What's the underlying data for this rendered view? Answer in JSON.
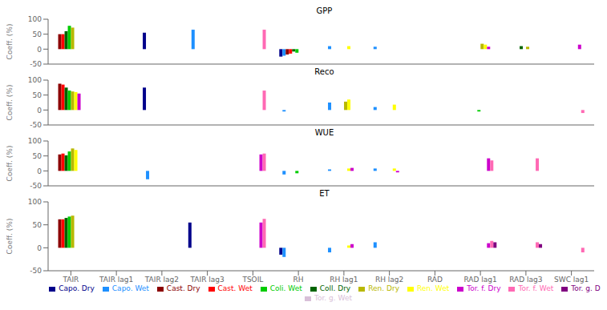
{
  "chart_data": [
    {
      "type": "bar",
      "title": "GPP",
      "ylabel": "Coeff. (%)",
      "categories": [
        "TAIR",
        "TAIR lag1",
        "TAIR lag2",
        "TAIR lag3",
        "TSOIL",
        "RH",
        "RH lag1",
        "RH lag2",
        "RAD",
        "RAD lag1",
        "RAD lag3",
        "SWC lag1"
      ],
      "ylim": [
        -50,
        100
      ],
      "yticks": [
        -50,
        0,
        50,
        100
      ],
      "grid": false,
      "tick_labels": "y",
      "series": [
        {
          "name": "Capo. Dry",
          "color": "#00008B",
          "values": [
            0,
            0,
            55,
            0,
            0,
            -25,
            0,
            0,
            0,
            0,
            0,
            0
          ]
        },
        {
          "name": "Capo. Wet",
          "color": "#1E90FF",
          "values": [
            0,
            0,
            0,
            65,
            0,
            -22,
            10,
            8,
            0,
            0,
            0,
            0
          ]
        },
        {
          "name": "Cast. Dry",
          "color": "#8B0000",
          "values": [
            50,
            0,
            0,
            0,
            0,
            -18,
            0,
            0,
            0,
            0,
            0,
            0
          ]
        },
        {
          "name": "Cast. Wet",
          "color": "#FF0000",
          "values": [
            50,
            0,
            0,
            0,
            0,
            -15,
            0,
            0,
            0,
            0,
            0,
            0
          ]
        },
        {
          "name": "Coll. Dry",
          "color": "#006400",
          "values": [
            60,
            0,
            0,
            0,
            0,
            -8,
            0,
            0,
            0,
            0,
            10,
            0
          ]
        },
        {
          "name": "Coli. Wet",
          "color": "#00CC00",
          "values": [
            78,
            0,
            0,
            0,
            0,
            -12,
            0,
            0,
            0,
            0,
            0,
            0
          ]
        },
        {
          "name": "Ren. Dry",
          "color": "#B8B800",
          "values": [
            72,
            0,
            0,
            0,
            0,
            0,
            0,
            0,
            0,
            18,
            8,
            0
          ]
        },
        {
          "name": "Ren. Wet",
          "color": "#FFFF00",
          "values": [
            0,
            0,
            0,
            0,
            0,
            0,
            10,
            0,
            0,
            15,
            0,
            0
          ]
        },
        {
          "name": "Tor. f. Dry",
          "color": "#CC00CC",
          "values": [
            0,
            0,
            0,
            0,
            0,
            0,
            0,
            0,
            0,
            8,
            0,
            15
          ]
        },
        {
          "name": "Tor. f. Wet",
          "color": "#FF69B4",
          "values": [
            0,
            0,
            0,
            0,
            65,
            0,
            0,
            0,
            0,
            0,
            0,
            0
          ]
        },
        {
          "name": "Tor. g. Dry",
          "color": "#800080",
          "values": [
            0,
            0,
            0,
            0,
            0,
            0,
            0,
            0,
            0,
            0,
            0,
            0
          ]
        },
        {
          "name": "Tor. g. Wet",
          "color": "#D8BFD8",
          "values": [
            0,
            0,
            0,
            0,
            0,
            0,
            0,
            0,
            0,
            0,
            0,
            0
          ]
        }
      ]
    },
    {
      "type": "bar",
      "title": "Reco",
      "ylabel": "Coeff. (%)",
      "categories": [
        "TAIR",
        "TAIR lag1",
        "TAIR lag2",
        "TAIR lag3",
        "TSOIL",
        "RH",
        "RH lag1",
        "RH lag2",
        "RAD",
        "RAD lag1",
        "RAD lag3",
        "SWC lag1"
      ],
      "ylim": [
        -50,
        100
      ],
      "yticks": [
        -50,
        0,
        50,
        100
      ],
      "grid": false,
      "tick_labels": "y",
      "series": [
        {
          "name": "Capo. Dry",
          "color": "#00008B",
          "values": [
            0,
            0,
            75,
            0,
            0,
            0,
            0,
            0,
            0,
            0,
            0,
            0
          ]
        },
        {
          "name": "Capo. Wet",
          "color": "#1E90FF",
          "values": [
            0,
            0,
            0,
            0,
            0,
            -5,
            25,
            10,
            0,
            0,
            0,
            0
          ]
        },
        {
          "name": "Cast. Dry",
          "color": "#8B0000",
          "values": [
            88,
            0,
            0,
            0,
            0,
            0,
            0,
            0,
            0,
            0,
            0,
            0
          ]
        },
        {
          "name": "Cast. Wet",
          "color": "#FF0000",
          "values": [
            85,
            0,
            0,
            0,
            0,
            0,
            0,
            0,
            0,
            0,
            0,
            0
          ]
        },
        {
          "name": "Coll. Dry",
          "color": "#006400",
          "values": [
            75,
            0,
            0,
            0,
            0,
            0,
            0,
            0,
            0,
            0,
            0,
            0
          ]
        },
        {
          "name": "Coli. Wet",
          "color": "#00CC00",
          "values": [
            65,
            0,
            0,
            0,
            0,
            0,
            0,
            0,
            0,
            -5,
            0,
            0
          ]
        },
        {
          "name": "Ren. Dry",
          "color": "#B8B800",
          "values": [
            62,
            0,
            0,
            0,
            0,
            0,
            28,
            0,
            0,
            0,
            0,
            0
          ]
        },
        {
          "name": "Ren. Wet",
          "color": "#FFFF00",
          "values": [
            60,
            0,
            0,
            0,
            0,
            0,
            35,
            18,
            0,
            0,
            0,
            0
          ]
        },
        {
          "name": "Tor. f. Dry",
          "color": "#CC00CC",
          "values": [
            55,
            0,
            0,
            0,
            0,
            0,
            0,
            0,
            0,
            0,
            0,
            0
          ]
        },
        {
          "name": "Tor. f. Wet",
          "color": "#FF69B4",
          "values": [
            0,
            0,
            0,
            0,
            65,
            0,
            0,
            0,
            0,
            0,
            0,
            -10
          ]
        },
        {
          "name": "Tor. g. Dry",
          "color": "#800080",
          "values": [
            0,
            0,
            0,
            0,
            0,
            0,
            0,
            0,
            0,
            0,
            0,
            0
          ]
        },
        {
          "name": "Tor. g. Wet",
          "color": "#D8BFD8",
          "values": [
            0,
            0,
            0,
            0,
            0,
            0,
            0,
            0,
            0,
            0,
            0,
            0
          ]
        }
      ]
    },
    {
      "type": "bar",
      "title": "WUE",
      "ylabel": "Coeff. (%)",
      "categories": [
        "TAIR",
        "TAIR lag1",
        "TAIR lag2",
        "TAIR lag3",
        "TSOIL",
        "RH",
        "RH lag1",
        "RH lag2",
        "RAD",
        "RAD lag1",
        "RAD lag3",
        "SWC lag1"
      ],
      "ylim": [
        -50,
        100
      ],
      "yticks": [
        -50,
        0,
        50,
        100
      ],
      "grid": false,
      "tick_labels": "y",
      "series": [
        {
          "name": "Capo. Dry",
          "color": "#00008B",
          "values": [
            0,
            0,
            0,
            0,
            0,
            0,
            0,
            0,
            0,
            0,
            0,
            0
          ]
        },
        {
          "name": "Capo. Wet",
          "color": "#1E90FF",
          "values": [
            0,
            0,
            -28,
            0,
            0,
            -12,
            5,
            8,
            0,
            0,
            0,
            0
          ]
        },
        {
          "name": "Cast. Dry",
          "color": "#8B0000",
          "values": [
            55,
            0,
            0,
            0,
            0,
            0,
            0,
            0,
            0,
            0,
            0,
            0
          ]
        },
        {
          "name": "Cast. Wet",
          "color": "#FF0000",
          "values": [
            58,
            0,
            0,
            0,
            0,
            0,
            0,
            0,
            0,
            0,
            0,
            0
          ]
        },
        {
          "name": "Coll. Dry",
          "color": "#006400",
          "values": [
            52,
            0,
            0,
            0,
            0,
            0,
            0,
            0,
            0,
            0,
            0,
            0
          ]
        },
        {
          "name": "Coli. Wet",
          "color": "#00CC00",
          "values": [
            65,
            0,
            0,
            0,
            0,
            -8,
            0,
            0,
            0,
            0,
            0,
            0
          ]
        },
        {
          "name": "Ren. Dry",
          "color": "#B8B800",
          "values": [
            75,
            0,
            0,
            0,
            0,
            0,
            0,
            0,
            0,
            0,
            0,
            0
          ]
        },
        {
          "name": "Ren. Wet",
          "color": "#FFFF00",
          "values": [
            70,
            0,
            0,
            0,
            0,
            0,
            8,
            8,
            0,
            0,
            0,
            0
          ]
        },
        {
          "name": "Tor. f. Dry",
          "color": "#CC00CC",
          "values": [
            0,
            0,
            0,
            0,
            55,
            0,
            10,
            -5,
            0,
            42,
            0,
            0
          ]
        },
        {
          "name": "Tor. f. Wet",
          "color": "#FF69B4",
          "values": [
            0,
            0,
            0,
            0,
            58,
            0,
            0,
            0,
            0,
            35,
            42,
            0
          ]
        },
        {
          "name": "Tor. g. Dry",
          "color": "#800080",
          "values": [
            0,
            0,
            0,
            0,
            0,
            0,
            0,
            0,
            0,
            0,
            0,
            0
          ]
        },
        {
          "name": "Tor. g. Wet",
          "color": "#D8BFD8",
          "values": [
            0,
            0,
            0,
            0,
            0,
            0,
            0,
            0,
            0,
            0,
            0,
            0
          ]
        }
      ]
    },
    {
      "type": "bar",
      "title": "ET",
      "ylabel": "Coeff. (%)",
      "categories": [
        "TAIR",
        "TAIR lag1",
        "TAIR lag2",
        "TAIR lag3",
        "TSOIL",
        "RH",
        "RH lag1",
        "RH lag2",
        "RAD",
        "RAD lag1",
        "RAD lag3",
        "SWC lag1"
      ],
      "ylim": [
        -50,
        100
      ],
      "yticks": [
        -50,
        0,
        50,
        100
      ],
      "grid": false,
      "legend": "bottom",
      "series": [
        {
          "name": "Capo. Dry",
          "color": "#00008B",
          "values": [
            0,
            0,
            0,
            55,
            0,
            -15,
            0,
            0,
            0,
            0,
            0,
            0
          ]
        },
        {
          "name": "Capo. Wet",
          "color": "#1E90FF",
          "values": [
            0,
            0,
            0,
            0,
            0,
            -20,
            -10,
            12,
            0,
            0,
            0,
            0
          ]
        },
        {
          "name": "Cast. Dry",
          "color": "#8B0000",
          "values": [
            62,
            0,
            0,
            0,
            0,
            0,
            0,
            0,
            0,
            0,
            0,
            0
          ]
        },
        {
          "name": "Cast. Wet",
          "color": "#FF0000",
          "values": [
            62,
            0,
            0,
            0,
            0,
            0,
            0,
            0,
            0,
            0,
            0,
            0
          ]
        },
        {
          "name": "Coll. Dry",
          "color": "#006400",
          "values": [
            65,
            0,
            0,
            0,
            0,
            0,
            0,
            0,
            0,
            0,
            0,
            0
          ]
        },
        {
          "name": "Coli. Wet",
          "color": "#00CC00",
          "values": [
            68,
            0,
            0,
            0,
            0,
            0,
            0,
            0,
            0,
            0,
            0,
            0
          ]
        },
        {
          "name": "Ren. Dry",
          "color": "#B8B800",
          "values": [
            70,
            0,
            0,
            0,
            0,
            0,
            0,
            0,
            0,
            0,
            0,
            0
          ]
        },
        {
          "name": "Ren. Wet",
          "color": "#FFFF00",
          "values": [
            0,
            0,
            0,
            0,
            0,
            0,
            5,
            0,
            0,
            0,
            0,
            0
          ]
        },
        {
          "name": "Tor. f. Dry",
          "color": "#CC00CC",
          "values": [
            0,
            0,
            0,
            0,
            55,
            0,
            8,
            0,
            0,
            10,
            0,
            0
          ]
        },
        {
          "name": "Tor. f. Wet",
          "color": "#FF69B4",
          "values": [
            0,
            0,
            0,
            0,
            63,
            0,
            0,
            0,
            0,
            15,
            12,
            -10
          ]
        },
        {
          "name": "Tor. g. Dry",
          "color": "#800080",
          "values": [
            0,
            0,
            0,
            0,
            0,
            0,
            0,
            0,
            0,
            12,
            8,
            0
          ]
        },
        {
          "name": "Tor. g. Wet",
          "color": "#D8BFD8",
          "values": [
            0,
            0,
            0,
            0,
            0,
            0,
            0,
            0,
            0,
            0,
            0,
            0
          ]
        }
      ]
    }
  ]
}
